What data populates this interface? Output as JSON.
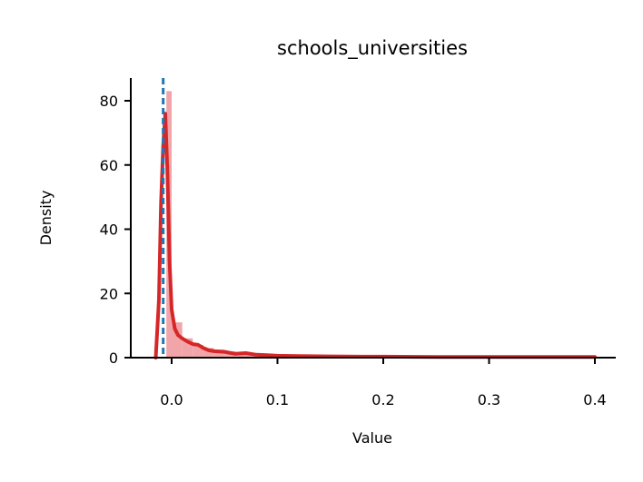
{
  "chart_data": {
    "type": "area",
    "title": "schools_universities",
    "xlabel": "Value",
    "ylabel": "Density",
    "xlim": [
      -0.04,
      0.42
    ],
    "ylim": [
      0,
      87
    ],
    "xticks": [
      0.0,
      0.1,
      0.2,
      0.3,
      0.4
    ],
    "xtick_labels": [
      "0.0",
      "0.1",
      "0.2",
      "0.3",
      "0.4"
    ],
    "yticks": [
      0,
      20,
      40,
      60,
      80
    ],
    "ytick_labels": [
      "0",
      "20",
      "40",
      "60",
      "80"
    ],
    "grid": false,
    "histogram": {
      "bins": [
        {
          "x0": -0.005,
          "x1": 0.0,
          "value": 83
        },
        {
          "x0": 0.0,
          "x1": 0.01,
          "value": 11
        },
        {
          "x0": 0.01,
          "x1": 0.02,
          "value": 6
        },
        {
          "x0": 0.02,
          "x1": 0.03,
          "value": 4
        },
        {
          "x0": 0.03,
          "x1": 0.04,
          "value": 3
        },
        {
          "x0": 0.04,
          "x1": 0.05,
          "value": 2.5
        },
        {
          "x0": 0.05,
          "x1": 0.06,
          "value": 2
        },
        {
          "x0": 0.06,
          "x1": 0.07,
          "value": 1.5
        },
        {
          "x0": 0.07,
          "x1": 0.08,
          "value": 1.2
        },
        {
          "x0": 0.08,
          "x1": 0.09,
          "value": 1.0
        },
        {
          "x0": 0.09,
          "x1": 0.1,
          "value": 0.8
        },
        {
          "x0": 0.1,
          "x1": 0.12,
          "value": 0.6
        },
        {
          "x0": 0.12,
          "x1": 0.15,
          "value": 0.5
        },
        {
          "x0": 0.15,
          "x1": 0.2,
          "value": 0.35
        },
        {
          "x0": 0.2,
          "x1": 0.25,
          "value": 0.3
        },
        {
          "x0": 0.25,
          "x1": 0.3,
          "value": 0.25
        },
        {
          "x0": 0.3,
          "x1": 0.35,
          "value": 0.2
        },
        {
          "x0": 0.35,
          "x1": 0.4,
          "value": 0.2
        }
      ]
    },
    "kde": {
      "x": [
        -0.015,
        -0.012,
        -0.01,
        -0.008,
        -0.006,
        -0.004,
        -0.002,
        0.0,
        0.003,
        0.006,
        0.01,
        0.015,
        0.02,
        0.025,
        0.03,
        0.035,
        0.04,
        0.05,
        0.06,
        0.07,
        0.08,
        0.09,
        0.1,
        0.12,
        0.15,
        0.18,
        0.2,
        0.25,
        0.3,
        0.35,
        0.4
      ],
      "y": [
        0,
        18,
        48,
        66,
        76,
        58,
        30,
        15,
        9,
        7,
        6,
        5,
        4.2,
        4.0,
        3.0,
        2.3,
        2.0,
        1.8,
        1.2,
        1.4,
        0.9,
        0.8,
        0.6,
        0.5,
        0.4,
        0.3,
        0.3,
        0.2,
        0.2,
        0.2,
        0.2
      ]
    },
    "reference_line": {
      "x": -0.008
    },
    "colors": {
      "kde": "#d62728",
      "histogram": "#f2a5a9",
      "reference_line": "#1f77b4"
    }
  }
}
